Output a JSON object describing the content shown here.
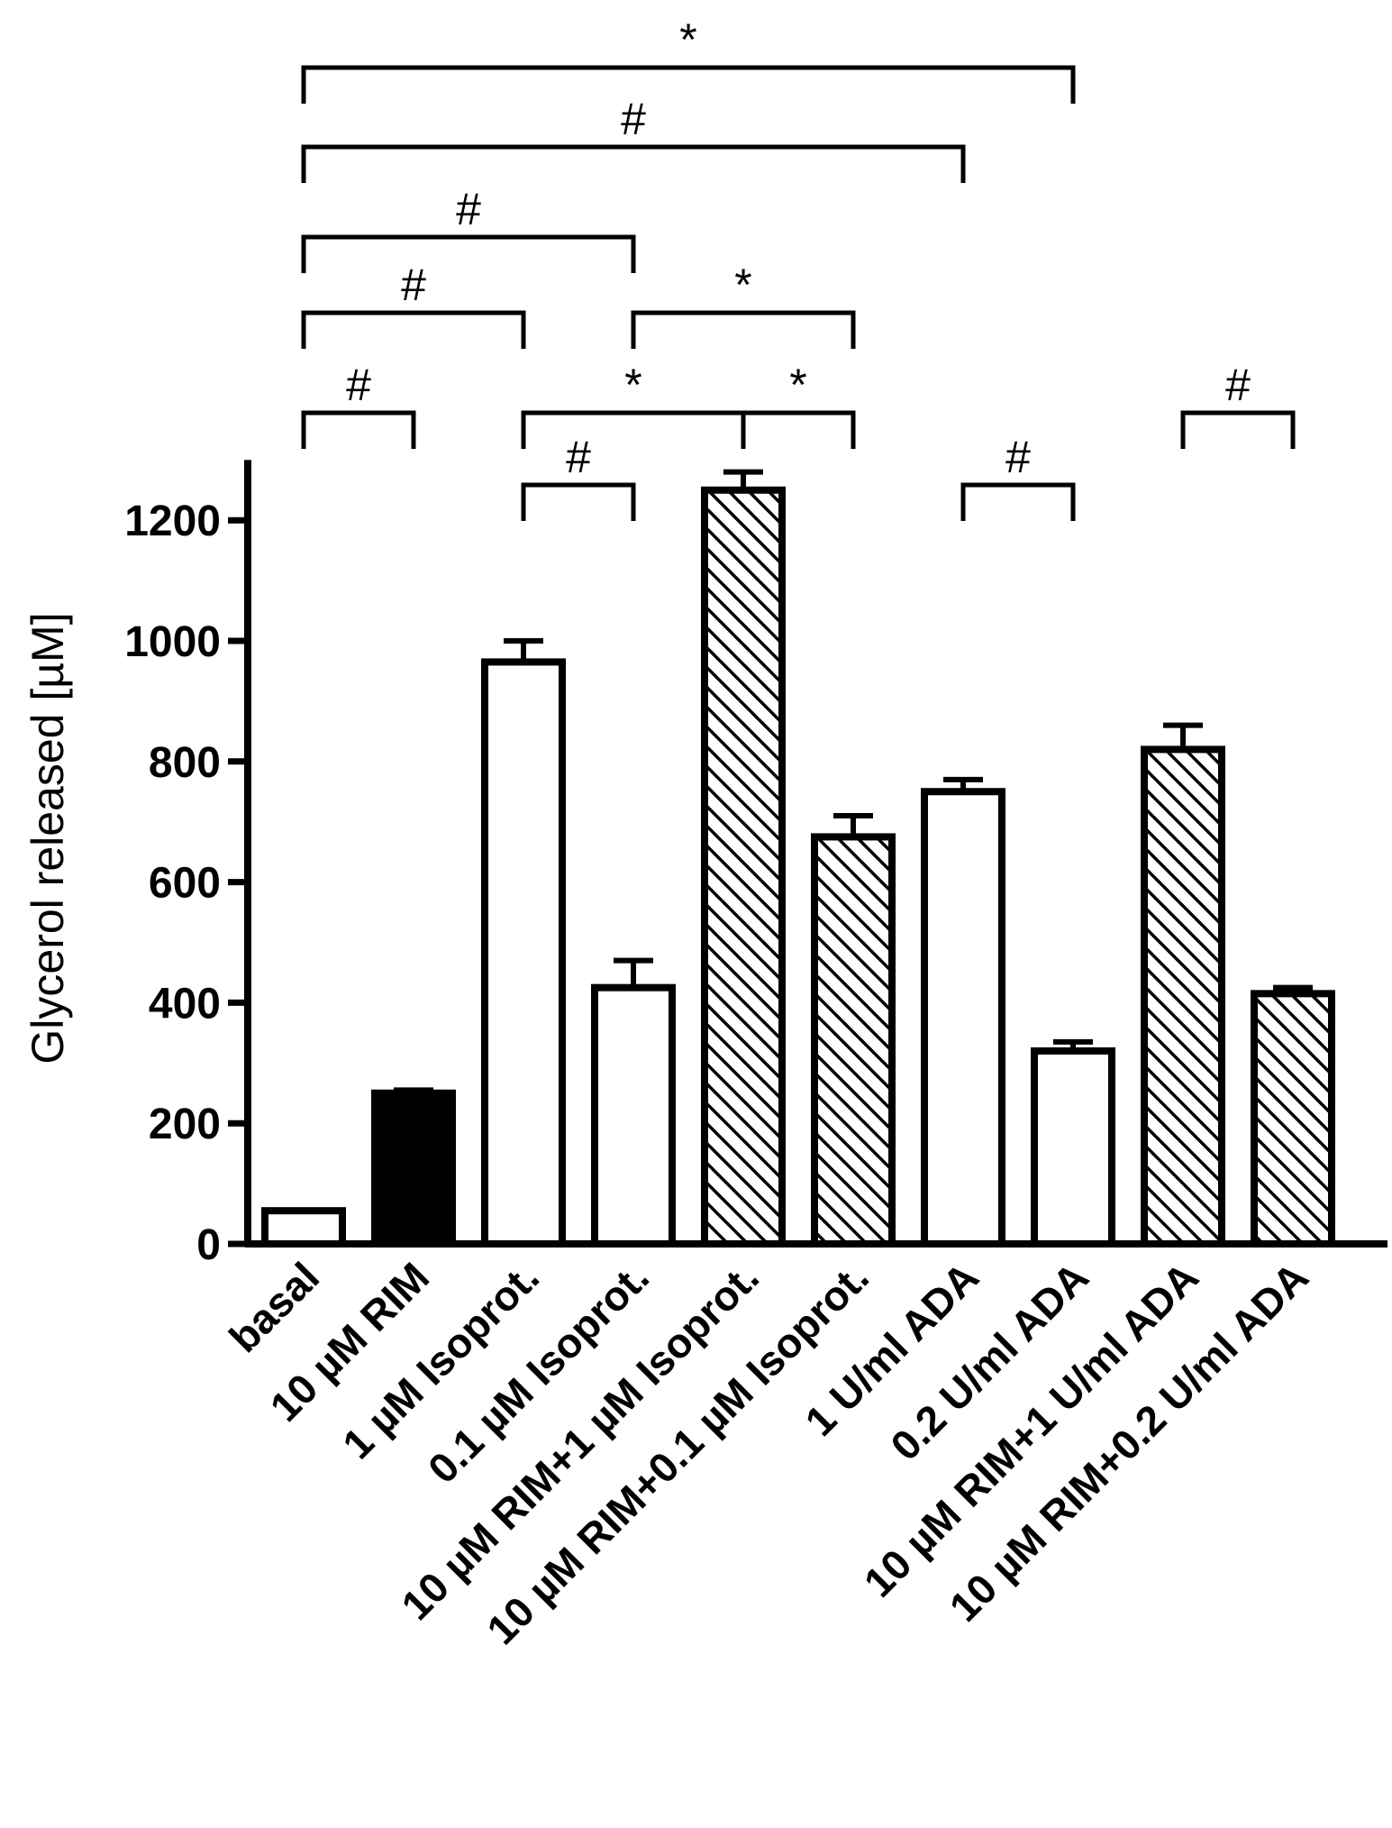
{
  "chart_data": {
    "type": "bar",
    "title": "",
    "xlabel": "",
    "ylabel": "Glycerol released [µM]",
    "ylim": [
      0,
      1300
    ],
    "yticks": [
      0,
      200,
      400,
      600,
      800,
      1000,
      1200
    ],
    "categories": [
      "basal",
      "10 µM RIM",
      "1 µM Isoprot.",
      "0.1 µM Isoprot.",
      "10 µM RIM+1 µM Isoprot.",
      "10 µM RIM+0.1 µM Isoprot.",
      "1 U/ml ADA",
      "0.2 U/ml ADA",
      "10 µM RIM+1 U/ml ADA",
      "10 µM RIM+0.2 U/ml ADA"
    ],
    "values": [
      55,
      250,
      965,
      425,
      1250,
      675,
      750,
      320,
      820,
      415
    ],
    "errors": [
      0,
      5,
      35,
      45,
      30,
      35,
      20,
      15,
      40,
      10
    ],
    "fills": [
      "white",
      "black",
      "white",
      "white",
      "hatch",
      "hatch",
      "white",
      "white",
      "hatch",
      "hatch"
    ],
    "significance": [
      {
        "from": 0,
        "to": 7,
        "symbol": "*"
      },
      {
        "from": 0,
        "to": 6,
        "symbol": "#"
      },
      {
        "from": 0,
        "to": 3,
        "symbol": "#"
      },
      {
        "from": 0,
        "to": 2,
        "symbol": "#"
      },
      {
        "from": 3,
        "to": 5,
        "symbol": "*"
      },
      {
        "from": 0,
        "to": 1,
        "symbol": "#"
      },
      {
        "from": 2,
        "to": 4,
        "symbol": "*"
      },
      {
        "from": 4,
        "to": 5,
        "symbol": "*"
      },
      {
        "from": 2,
        "to": 3,
        "symbol": "#"
      },
      {
        "from": 6,
        "to": 7,
        "symbol": "#"
      },
      {
        "from": 8,
        "to": 9,
        "symbol": "#"
      }
    ]
  }
}
